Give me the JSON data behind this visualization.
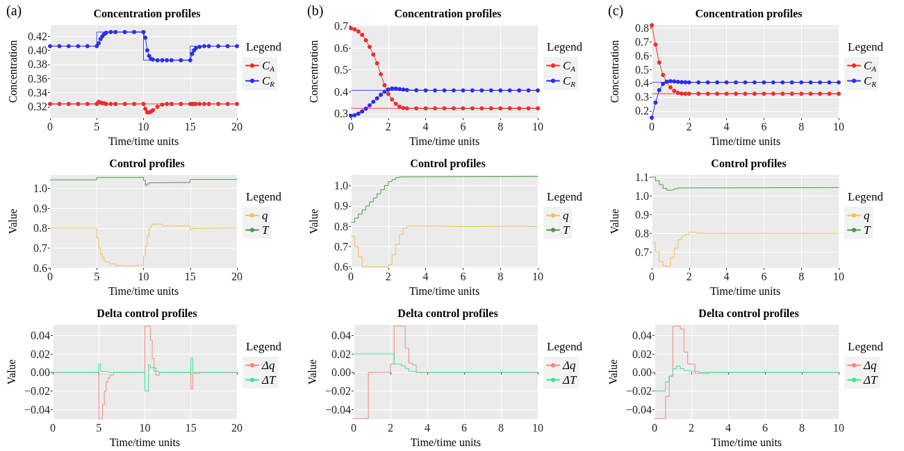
{
  "chart_data": [
    {
      "type": "line",
      "title": "Concentration profiles",
      "xlabel": "Time/time units",
      "ylabel": "Concentration",
      "legend_title": "Legend",
      "annotations": [
        "(a)"
      ],
      "legend": "right",
      "grid": true,
      "marker": "circle",
      "xlim": [
        0,
        20
      ],
      "xticks": [
        0,
        5,
        10,
        15,
        20
      ],
      "ylim": [
        0.304,
        0.436
      ],
      "yticks": [
        0.32,
        0.34,
        0.36,
        0.38,
        {
          "value": 0.4,
          "label": "0.40"
        },
        0.42
      ],
      "series": [
        {
          "type": "step",
          "color": "#2c2cee",
          "line_style": "dotted",
          "marker": "none",
          "x": [
            0,
            5,
            10,
            15,
            20
          ],
          "values": [
            0.406,
            0.426,
            0.386,
            0.406,
            0.406
          ]
        },
        {
          "color": "#ee2c2c",
          "line_style": "dotted",
          "marker": "none",
          "x": [
            0,
            20
          ],
          "values": [
            0.324,
            0.324
          ]
        },
        {
          "name": "C$_{A}$",
          "color": "#ee2c2c",
          "x": [
            0,
            1,
            2,
            3,
            4,
            5,
            5.2,
            5.4,
            5.6,
            5.8,
            6,
            6.5,
            7,
            8,
            9,
            10,
            10.2,
            10.4,
            10.6,
            10.8,
            11,
            11.5,
            12,
            12.5,
            13,
            14,
            15,
            15.2,
            15.4,
            15.6,
            16,
            16.5,
            17,
            18,
            19,
            20
          ],
          "values": [
            0.324,
            0.324,
            0.324,
            0.324,
            0.324,
            0.324,
            0.327,
            0.326,
            0.325,
            0.325,
            0.324,
            0.324,
            0.324,
            0.324,
            0.324,
            0.324,
            0.317,
            0.312,
            0.312,
            0.313,
            0.315,
            0.32,
            0.323,
            0.324,
            0.324,
            0.324,
            0.324,
            0.324,
            0.324,
            0.324,
            0.324,
            0.324,
            0.324,
            0.324,
            0.324,
            0.324
          ]
        },
        {
          "name": "C$_{R}$",
          "color": "#2c2cee",
          "x": [
            0,
            1,
            2,
            3,
            4,
            5,
            5.2,
            5.4,
            5.6,
            5.8,
            6,
            6.5,
            7,
            8,
            9,
            10,
            10.2,
            10.4,
            10.6,
            10.8,
            11,
            11.5,
            12,
            12.5,
            13,
            14,
            15,
            15.2,
            15.4,
            15.6,
            16,
            16.5,
            17,
            18,
            19,
            20
          ],
          "values": [
            0.406,
            0.406,
            0.406,
            0.406,
            0.406,
            0.406,
            0.41,
            0.416,
            0.42,
            0.423,
            0.425,
            0.426,
            0.426,
            0.426,
            0.426,
            0.426,
            0.418,
            0.4,
            0.392,
            0.388,
            0.387,
            0.386,
            0.386,
            0.386,
            0.386,
            0.386,
            0.386,
            0.395,
            0.4,
            0.403,
            0.405,
            0.406,
            0.406,
            0.406,
            0.406,
            0.406
          ]
        }
      ]
    },
    {
      "type": "line",
      "title": "Concentration profiles",
      "xlabel": "Time/time units",
      "ylabel": "Concentration",
      "legend_title": "Legend",
      "annotations": [
        "(b)"
      ],
      "legend": "right",
      "grid": true,
      "marker": "circle",
      "xlim": [
        0,
        10
      ],
      "xticks": [
        0,
        2,
        4,
        6,
        8,
        10
      ],
      "ylim": [
        0.28,
        0.705
      ],
      "yticks": [
        0.3,
        0.4,
        0.5,
        0.6,
        0.7
      ],
      "series": [
        {
          "color": "#2c2cee",
          "line_style": "dotted",
          "marker": "none",
          "x": [
            0,
            10
          ],
          "values": [
            0.406,
            0.406
          ]
        },
        {
          "color": "#ee2c2c",
          "line_style": "dotted",
          "marker": "none",
          "x": [
            0,
            10
          ],
          "values": [
            0.324,
            0.324
          ]
        },
        {
          "name": "C$_{A}$",
          "color": "#ee2c2c",
          "x": [
            0,
            0.2,
            0.4,
            0.6,
            0.8,
            1,
            1.2,
            1.4,
            1.6,
            1.8,
            2,
            2.2,
            2.4,
            2.6,
            2.8,
            3,
            3.5,
            4,
            4.5,
            5,
            5.5,
            6,
            6.5,
            7,
            7.5,
            8,
            8.5,
            9,
            9.5,
            10
          ],
          "values": [
            0.69,
            0.685,
            0.675,
            0.66,
            0.635,
            0.605,
            0.57,
            0.53,
            0.48,
            0.43,
            0.39,
            0.365,
            0.345,
            0.332,
            0.326,
            0.324,
            0.324,
            0.324,
            0.324,
            0.324,
            0.324,
            0.324,
            0.324,
            0.324,
            0.324,
            0.324,
            0.324,
            0.324,
            0.324,
            0.324
          ]
        },
        {
          "name": "C$_{R}$",
          "color": "#2c2cee",
          "x": [
            0,
            0.2,
            0.4,
            0.6,
            0.8,
            1,
            1.2,
            1.4,
            1.6,
            1.8,
            2,
            2.2,
            2.4,
            2.6,
            2.8,
            3,
            3.5,
            4,
            4.5,
            5,
            5.5,
            6,
            6.5,
            7,
            7.5,
            8,
            8.5,
            9,
            9.5,
            10
          ],
          "values": [
            0.29,
            0.293,
            0.3,
            0.31,
            0.323,
            0.338,
            0.354,
            0.37,
            0.386,
            0.4,
            0.41,
            0.415,
            0.415,
            0.412,
            0.41,
            0.408,
            0.407,
            0.406,
            0.406,
            0.406,
            0.406,
            0.406,
            0.406,
            0.406,
            0.406,
            0.406,
            0.406,
            0.406,
            0.406,
            0.406
          ]
        }
      ]
    },
    {
      "type": "line",
      "title": "Concentration profiles",
      "xlabel": "Time/time units",
      "ylabel": "Concentration",
      "legend_title": "Legend",
      "annotations": [
        "(c)"
      ],
      "legend": "right",
      "grid": true,
      "marker": "circle",
      "xlim": [
        0,
        10
      ],
      "xticks": [
        0,
        2,
        4,
        6,
        8,
        10
      ],
      "ylim": [
        0.148,
        0.822
      ],
      "yticks": [
        0.2,
        0.3,
        0.4,
        0.5,
        0.6,
        0.7,
        0.8
      ],
      "series": [
        {
          "color": "#2c2cee",
          "line_style": "dotted",
          "marker": "none",
          "x": [
            0,
            10
          ],
          "values": [
            0.406,
            0.406
          ]
        },
        {
          "color": "#ee2c2c",
          "line_style": "dotted",
          "marker": "none",
          "x": [
            0,
            10
          ],
          "values": [
            0.324,
            0.324
          ]
        },
        {
          "name": "C$_{A}$",
          "color": "#ee2c2c",
          "x": [
            0,
            0.2,
            0.4,
            0.6,
            0.8,
            1,
            1.2,
            1.4,
            1.6,
            1.8,
            2,
            2.5,
            3,
            3.5,
            4,
            4.5,
            5,
            5.5,
            6,
            6.5,
            7,
            7.5,
            8,
            8.5,
            9,
            9.5,
            10
          ],
          "values": [
            0.82,
            0.68,
            0.55,
            0.46,
            0.41,
            0.37,
            0.345,
            0.33,
            0.325,
            0.324,
            0.324,
            0.324,
            0.324,
            0.324,
            0.324,
            0.324,
            0.324,
            0.324,
            0.324,
            0.324,
            0.324,
            0.324,
            0.324,
            0.324,
            0.324,
            0.324,
            0.324
          ]
        },
        {
          "name": "C$_{R}$",
          "color": "#2c2cee",
          "x": [
            0,
            0.2,
            0.4,
            0.6,
            0.8,
            1,
            1.2,
            1.4,
            1.6,
            1.8,
            2,
            2.5,
            3,
            3.5,
            4,
            4.5,
            5,
            5.5,
            6,
            6.5,
            7,
            7.5,
            8,
            8.5,
            9,
            9.5,
            10
          ],
          "values": [
            0.15,
            0.26,
            0.35,
            0.395,
            0.41,
            0.415,
            0.413,
            0.41,
            0.408,
            0.407,
            0.406,
            0.406,
            0.406,
            0.406,
            0.406,
            0.406,
            0.406,
            0.406,
            0.406,
            0.406,
            0.406,
            0.406,
            0.406,
            0.406,
            0.406,
            0.406,
            0.406
          ]
        }
      ]
    },
    {
      "type": "step",
      "title": "Control profiles",
      "xlabel": "Time/time units",
      "ylabel": "Value",
      "legend_title": "Legend",
      "legend": "right",
      "grid": true,
      "marker": "none",
      "xlim": [
        0,
        20
      ],
      "xticks": [
        0,
        5,
        10,
        15,
        20
      ],
      "ylim": [
        0.6,
        1.068
      ],
      "yticks": [
        0.6,
        0.7,
        0.8,
        0.9,
        {
          "value": 1,
          "label": "1.0"
        }
      ],
      "series": [
        {
          "name": "q",
          "color": "#f5bd55",
          "x": [
            0,
            5,
            5.2,
            5.4,
            5.6,
            5.8,
            6,
            6.4,
            7,
            8,
            9,
            10,
            10.2,
            10.4,
            10.6,
            10.8,
            11,
            12,
            13,
            15,
            15.2,
            16,
            20
          ],
          "values": [
            0.8,
            0.75,
            0.7,
            0.67,
            0.65,
            0.635,
            0.628,
            0.62,
            0.613,
            0.61,
            0.613,
            0.66,
            0.71,
            0.76,
            0.8,
            0.815,
            0.82,
            0.812,
            0.81,
            0.79,
            0.798,
            0.8,
            0.8
          ]
        },
        {
          "name": "T",
          "color": "#4a9a4a",
          "x": [
            0,
            5,
            10,
            10.2,
            10.4,
            10.6,
            11,
            15,
            20
          ],
          "values": [
            1.043,
            1.055,
            1.04,
            1.015,
            1.022,
            1.028,
            1.03,
            1.045,
            1.045
          ]
        }
      ]
    },
    {
      "type": "step",
      "title": "Control profiles",
      "xlabel": "Time/time units",
      "ylabel": "Value",
      "legend_title": "Legend",
      "legend": "right",
      "grid": true,
      "marker": "none",
      "xlim": [
        0,
        10
      ],
      "xticks": [
        0,
        2,
        4,
        6,
        8,
        10
      ],
      "ylim": [
        0.595,
        1.053
      ],
      "yticks": [
        0.6,
        0.7,
        0.8,
        0.9,
        {
          "value": 1,
          "label": "1.0"
        }
      ],
      "series": [
        {
          "name": "q",
          "color": "#f5bd55",
          "x": [
            0,
            0.2,
            0.4,
            0.6,
            2,
            2.2,
            2.4,
            2.6,
            2.8,
            3,
            5,
            6,
            9,
            10
          ],
          "values": [
            0.75,
            0.7,
            0.65,
            0.6,
            0.61,
            0.66,
            0.71,
            0.76,
            0.79,
            0.8,
            0.798,
            0.8,
            0.798,
            0.798
          ]
        },
        {
          "name": "T",
          "color": "#4a9a4a",
          "x": [
            0,
            0.2,
            0.4,
            0.6,
            0.8,
            1,
            1.2,
            1.4,
            1.6,
            1.8,
            2,
            2.2,
            2.4,
            2.6,
            3,
            10
          ],
          "values": [
            0.82,
            0.84,
            0.86,
            0.88,
            0.9,
            0.92,
            0.94,
            0.96,
            0.98,
            1.0,
            1.02,
            1.03,
            1.04,
            1.043,
            1.045,
            1.045
          ]
        }
      ]
    },
    {
      "type": "step",
      "title": "Control profiles",
      "xlabel": "Time/time units",
      "ylabel": "Value",
      "legend_title": "Legend",
      "legend": "right",
      "grid": true,
      "marker": "none",
      "xlim": [
        0,
        10
      ],
      "xticks": [
        0,
        2,
        4,
        6,
        8,
        10
      ],
      "ylim": [
        0.615,
        1.112
      ],
      "yticks": [
        0.7,
        0.8,
        0.9,
        {
          "value": 1,
          "label": "1.0"
        },
        1.1
      ],
      "series": [
        {
          "name": "q",
          "color": "#f5bd55",
          "x": [
            0,
            0.2,
            0.4,
            0.6,
            0.8,
            1,
            1.2,
            1.4,
            1.6,
            1.8,
            2,
            2.4,
            10
          ],
          "values": [
            0.75,
            0.7,
            0.65,
            0.625,
            0.62,
            0.67,
            0.72,
            0.765,
            0.785,
            0.795,
            0.805,
            0.8,
            0.8
          ]
        },
        {
          "name": "T",
          "color": "#4a9a4a",
          "x": [
            0,
            0.2,
            0.4,
            0.6,
            0.8,
            1,
            1.2,
            1.4,
            1.6,
            10
          ],
          "values": [
            1.1,
            1.08,
            1.06,
            1.04,
            1.03,
            1.032,
            1.038,
            1.042,
            1.044,
            1.044
          ]
        }
      ]
    },
    {
      "type": "step",
      "title": "Delta control profiles",
      "xlabel": "Time/time units",
      "ylabel": "Value",
      "legend_title": "Legend",
      "legend": "right",
      "grid": true,
      "marker": "none",
      "xlim": [
        0,
        20
      ],
      "xticks": [
        0,
        5,
        10,
        15,
        20
      ],
      "ylim": [
        -0.0505,
        0.0515
      ],
      "yticks": [
        {
          "value": -0.04,
          "label": "−0.04"
        },
        {
          "value": -0.02,
          "label": "−0.02"
        },
        {
          "value": 0,
          "label": "0.00"
        },
        0.02,
        0.04
      ],
      "series": [
        {
          "name": "Δq",
          "color": "#f28a78",
          "x": [
            0,
            5,
            5.4,
            5.6,
            5.8,
            6,
            6.2,
            6.6,
            10,
            10.6,
            10.8,
            11,
            11.2,
            11.6,
            15,
            15.2,
            20
          ],
          "values": [
            0,
            -0.05,
            -0.035,
            -0.02,
            -0.01,
            -0.006,
            -0.003,
            0,
            0.05,
            0.035,
            0.015,
            0.005,
            -0.003,
            0,
            -0.018,
            0,
            0
          ]
        },
        {
          "name": "ΔT",
          "color": "#35e890",
          "x": [
            0,
            5,
            5.2,
            6,
            10,
            10.4,
            10.6,
            11,
            11.5,
            15,
            15.2,
            16,
            20
          ],
          "values": [
            0,
            0.009,
            0.001,
            0,
            -0.02,
            0.008,
            0.005,
            0.001,
            0,
            0.016,
            -0.001,
            0,
            0
          ]
        }
      ]
    },
    {
      "type": "step",
      "title": "Delta control profiles",
      "xlabel": "Time/time units",
      "ylabel": "Value",
      "legend_title": "Legend",
      "legend": "right",
      "grid": true,
      "marker": "none",
      "xlim": [
        0,
        10
      ],
      "xticks": [
        0,
        2,
        4,
        6,
        8,
        10
      ],
      "ylim": [
        -0.0505,
        0.0515
      ],
      "yticks": [
        {
          "value": -0.04,
          "label": "−0.04"
        },
        {
          "value": -0.02,
          "label": "−0.02"
        },
        {
          "value": 0,
          "label": "0.00"
        },
        0.02,
        0.04
      ],
      "series": [
        {
          "name": "Δq",
          "color": "#f28a78",
          "x": [
            0,
            0.8,
            2,
            2.2,
            2.8,
            3,
            3.2,
            3.4,
            10
          ],
          "values": [
            -0.05,
            0,
            0.009,
            0.05,
            0.026,
            0.01,
            0.008,
            0,
            0
          ]
        },
        {
          "name": "ΔT",
          "color": "#35e890",
          "x": [
            0,
            2.2,
            2.6,
            2.8,
            3,
            3.4,
            10
          ],
          "values": [
            0.02,
            0.009,
            0.007,
            0.004,
            0.001,
            0,
            0
          ]
        }
      ]
    },
    {
      "type": "step",
      "title": "Delta control profiles",
      "xlabel": "Time/time units",
      "ylabel": "Value",
      "legend_title": "Legend",
      "legend": "right",
      "grid": true,
      "marker": "none",
      "xlim": [
        0,
        10
      ],
      "xticks": [
        0,
        2,
        4,
        6,
        8,
        10
      ],
      "ylim": [
        -0.0505,
        0.0515
      ],
      "yticks": [
        {
          "value": -0.04,
          "label": "−0.04"
        },
        {
          "value": -0.02,
          "label": "−0.02"
        },
        {
          "value": 0,
          "label": "0.00"
        },
        0.02,
        0.04
      ],
      "series": [
        {
          "name": "Δq",
          "color": "#f28a78",
          "x": [
            0,
            0.6,
            0.8,
            1,
            1.4,
            1.6,
            1.8,
            2.2,
            3,
            10
          ],
          "values": [
            -0.05,
            -0.026,
            -0.004,
            0.05,
            0.047,
            0.022,
            0.009,
            -0.001,
            0,
            0
          ]
        },
        {
          "name": "ΔT",
          "color": "#35e890",
          "x": [
            0,
            0.6,
            0.8,
            1,
            1.2,
            1.4,
            1.6,
            2,
            2.4,
            10
          ],
          "values": [
            -0.02,
            -0.01,
            -0.004,
            0.004,
            0.007,
            0.004,
            0.002,
            0.001,
            0,
            0
          ]
        }
      ]
    }
  ]
}
